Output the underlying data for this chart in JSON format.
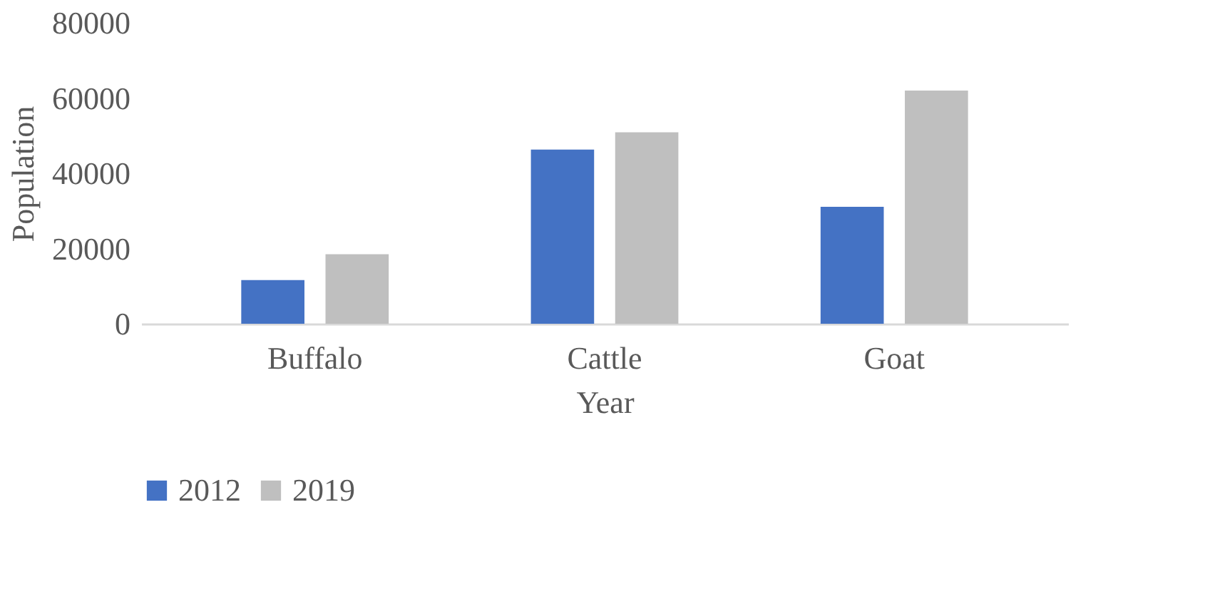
{
  "chart_data": {
    "type": "bar",
    "xlabel": "Year",
    "ylabel": "Population",
    "categories": [
      "Buffalo",
      "Cattle",
      "Goat"
    ],
    "series": [
      {
        "name": "2012",
        "color": "#4472c4",
        "values": [
          11600,
          46300,
          31100
        ]
      },
      {
        "name": "2019",
        "color": "#bfbfbf",
        "values": [
          18500,
          50900,
          62000
        ]
      }
    ],
    "ylim": [
      0,
      80000
    ],
    "yticks": [
      0,
      20000,
      40000,
      60000,
      80000
    ],
    "grid": false,
    "legend": "bottom"
  }
}
